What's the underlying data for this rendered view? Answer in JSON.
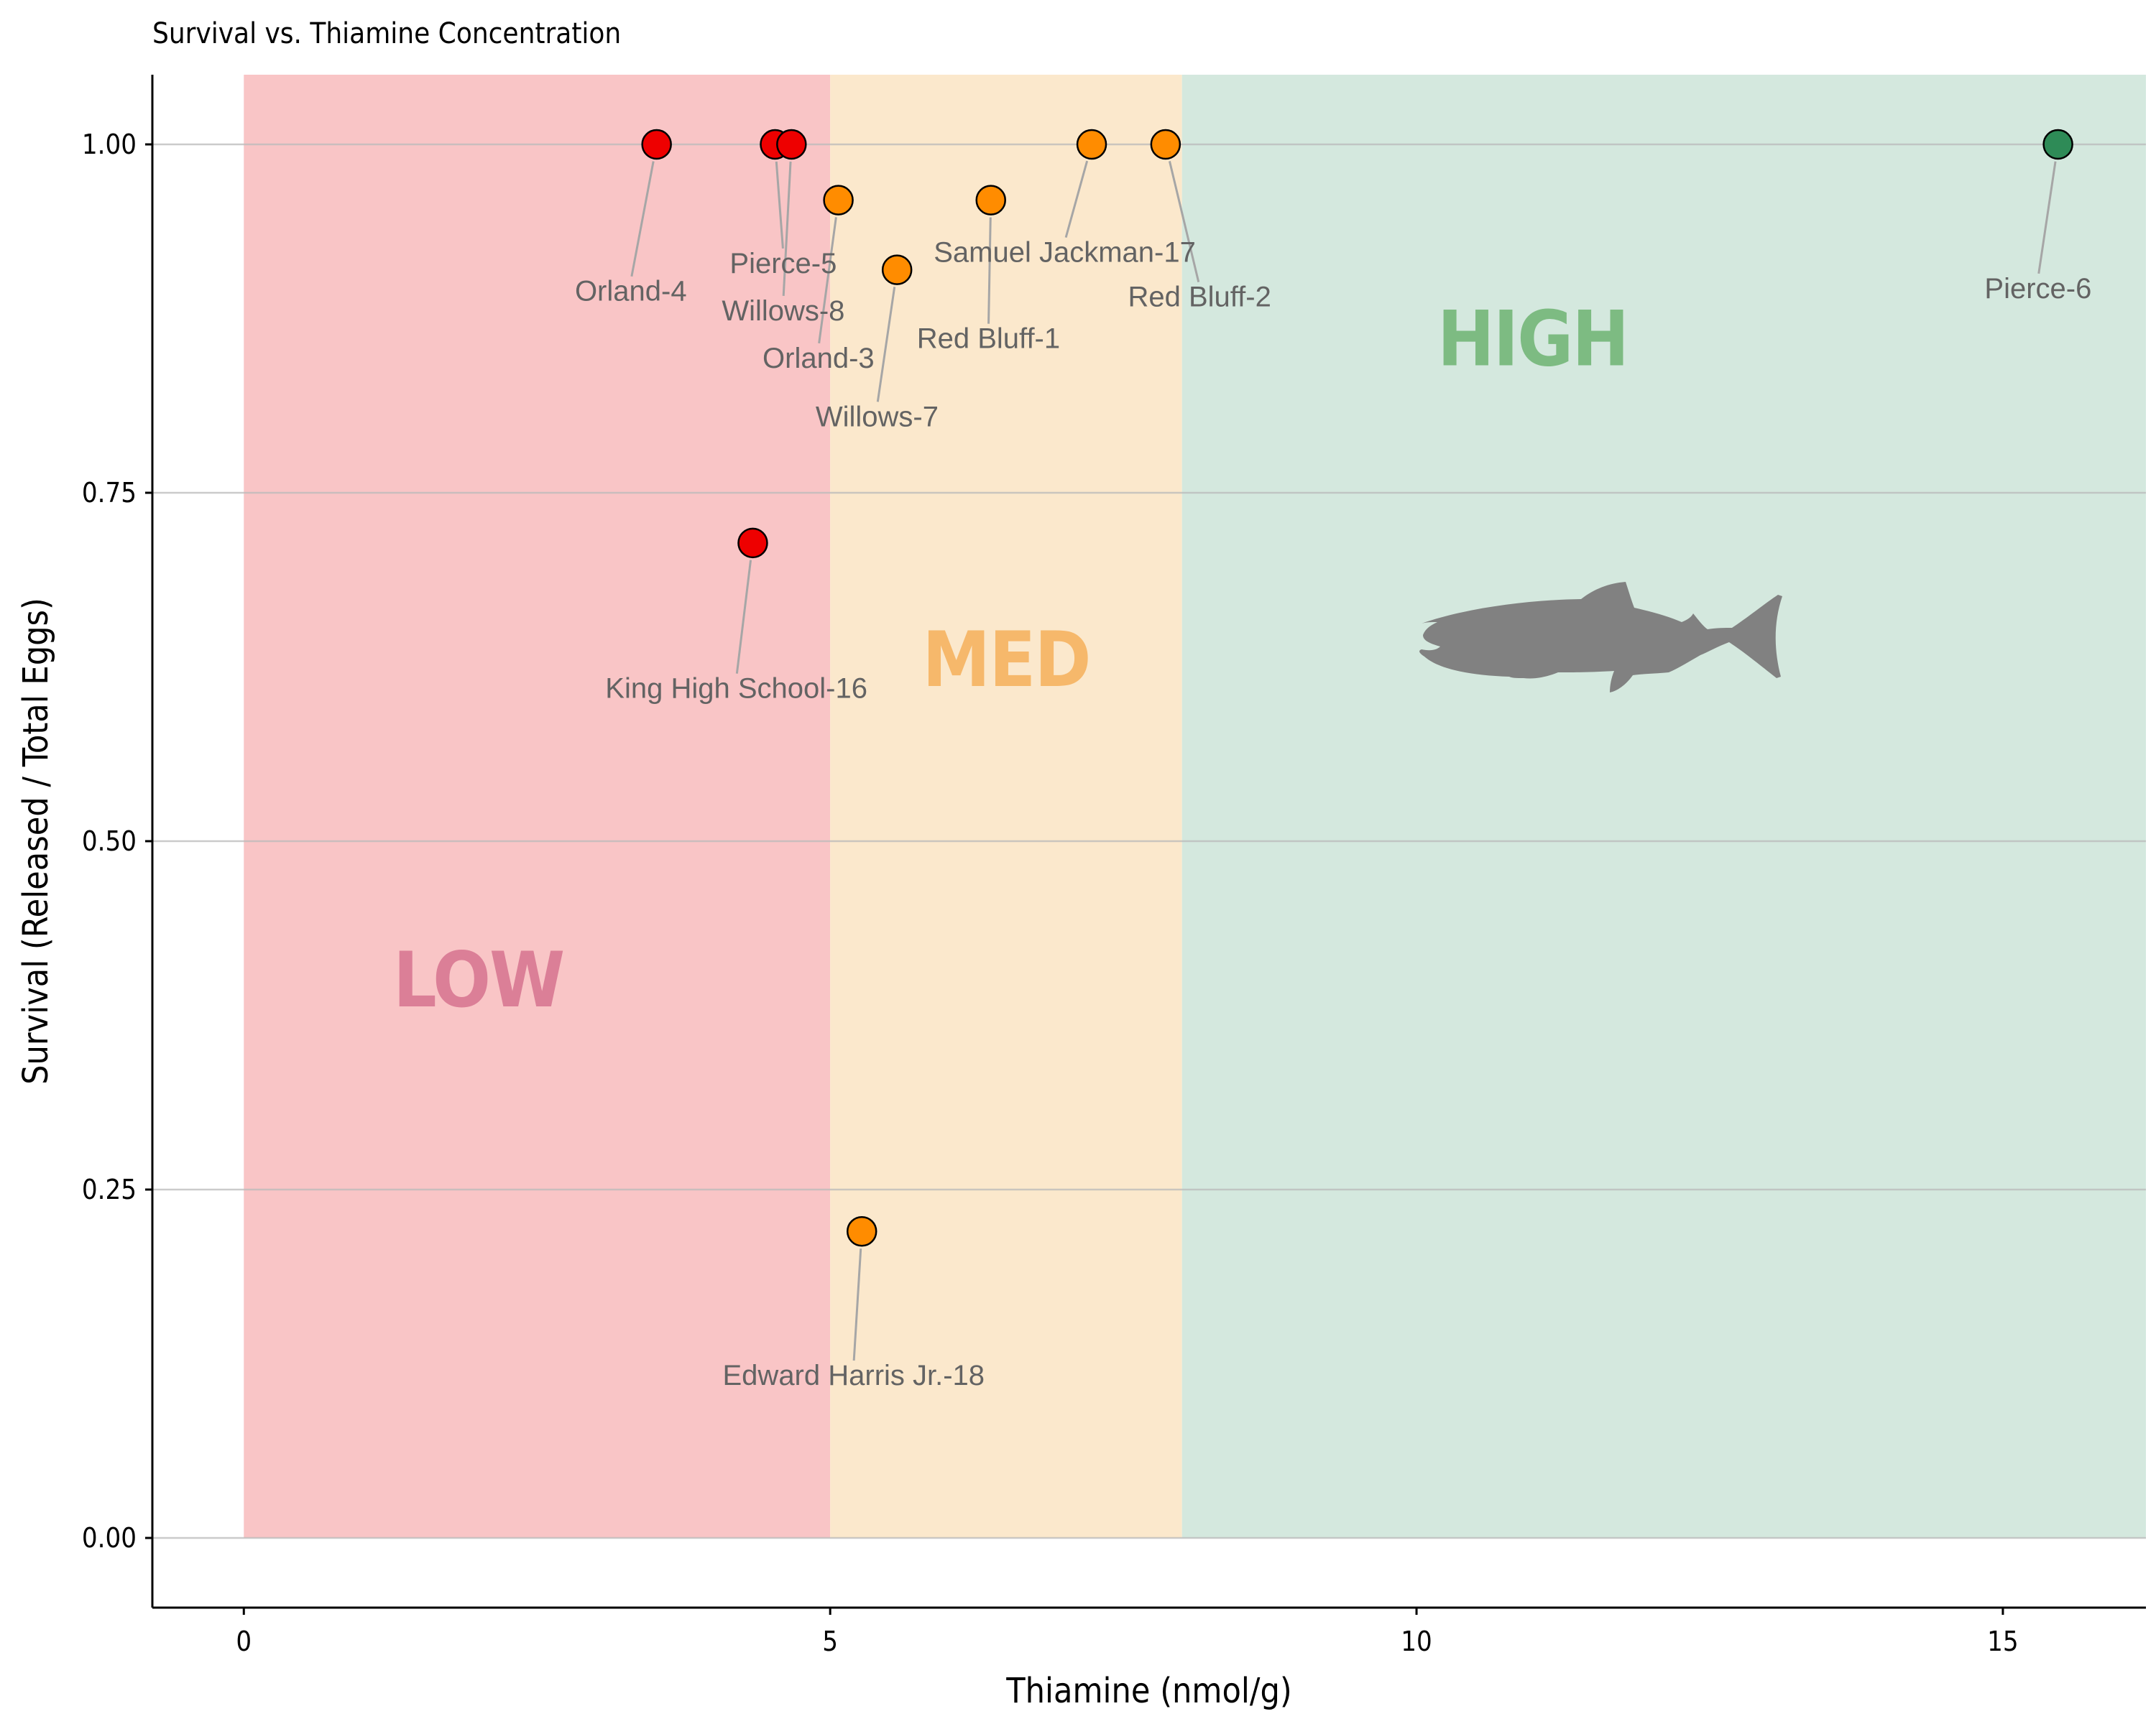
{
  "chart_data": {
    "type": "scatter",
    "title": "Survival vs. Thiamine Concentration",
    "xlabel": "Thiamine (nmol/g)",
    "ylabel": "Survival (Released / Total Eggs)",
    "xlim": [
      -0.78,
      16.22
    ],
    "ylim": [
      -0.05,
      1.05
    ],
    "x_ticks": [
      {
        "value": 0,
        "label": "0"
      },
      {
        "value": 5,
        "label": "5"
      },
      {
        "value": 10,
        "label": "10"
      },
      {
        "value": 15,
        "label": "15"
      }
    ],
    "y_ticks": [
      {
        "value": 0,
        "label": "0.00"
      },
      {
        "value": 0.25,
        "label": "0.25"
      },
      {
        "value": 0.5,
        "label": "0.50"
      },
      {
        "value": 0.75,
        "label": "0.75"
      },
      {
        "value": 1,
        "label": "1.00"
      }
    ],
    "grid": "horizontal major",
    "zones": [
      {
        "label": "LOW",
        "x_from": 0,
        "x_to": 5,
        "fill": "#f9c5c6",
        "label_color": "#db7f97",
        "label_x": 2,
        "label_y": 0.4
      },
      {
        "label": "MED",
        "x_from": 5,
        "x_to": 8,
        "fill": "#fbe8cc",
        "label_color": "#f6b86b",
        "label_x": 6.5,
        "label_y": 0.63
      },
      {
        "label": "HIGH",
        "x_from": 8,
        "x_to": 16.22,
        "fill": "#d4e8de",
        "label_color": "#7dbb82",
        "label_x": 10.99,
        "label_y": 0.86
      }
    ],
    "category_colors": {
      "low": "#ee0000",
      "med": "#ff8c00",
      "high": "#2e8b57"
    },
    "points": [
      {
        "name": "Orland-4",
        "x": 3.52,
        "y": 1.0,
        "cat": "low",
        "lx": 3.3,
        "ly": 0.895
      },
      {
        "name": "Pierce-5",
        "x": 4.53,
        "y": 1.0,
        "cat": "low",
        "lx": 4.6,
        "ly": 0.915
      },
      {
        "name": "Willows-8",
        "x": 4.67,
        "y": 1.0,
        "cat": "low",
        "lx": 4.6,
        "ly": 0.881
      },
      {
        "name": "King High School-16",
        "x": 4.34,
        "y": 0.714,
        "cat": "low",
        "lx": 4.2,
        "ly": 0.61
      },
      {
        "name": "Orland-3",
        "x": 5.07,
        "y": 0.96,
        "cat": "med",
        "lx": 4.9,
        "ly": 0.847
      },
      {
        "name": "Willows-7",
        "x": 5.57,
        "y": 0.91,
        "cat": "med",
        "lx": 5.4,
        "ly": 0.805
      },
      {
        "name": "Red Bluff-1",
        "x": 6.37,
        "y": 0.96,
        "cat": "med",
        "lx": 6.35,
        "ly": 0.861
      },
      {
        "name": "Samuel Jackman-17",
        "x": 7.23,
        "y": 1.0,
        "cat": "med",
        "lx": 7.0,
        "ly": 0.923
      },
      {
        "name": "Red Bluff-2",
        "x": 7.86,
        "y": 1.0,
        "cat": "med",
        "lx": 8.15,
        "ly": 0.891
      },
      {
        "name": "Edward Harris Jr.-18",
        "x": 5.27,
        "y": 0.22,
        "cat": "med",
        "lx": 5.2,
        "ly": 0.117
      },
      {
        "name": "Pierce-6",
        "x": 15.47,
        "y": 1.0,
        "cat": "high",
        "lx": 15.3,
        "ly": 0.897
      }
    ]
  }
}
